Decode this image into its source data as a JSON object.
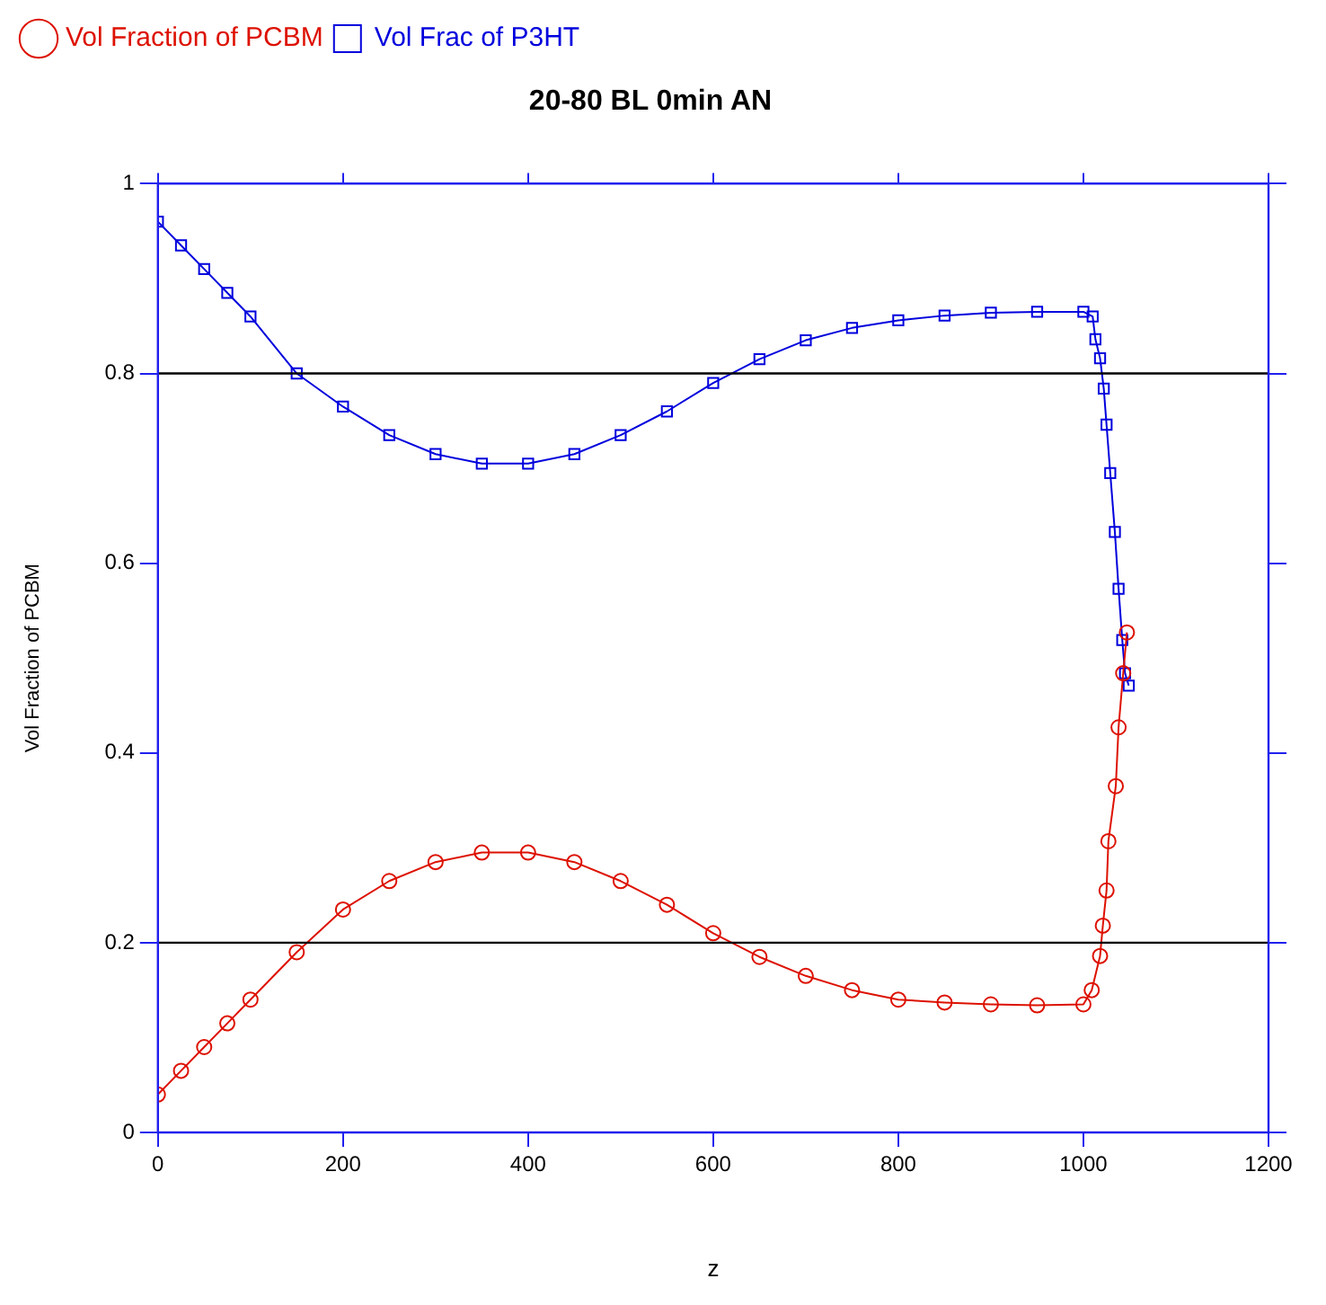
{
  "chart_data": {
    "type": "line",
    "title": "20-80 BL 0min AN",
    "xlabel": "z",
    "ylabel": "Vol Fraction of PCBM",
    "series": [
      {
        "name": "Vol Fraction of PCBM",
        "color": "#dd1100",
        "marker": "circle",
        "x": [
          0,
          25,
          50,
          75,
          100,
          150,
          200,
          250,
          300,
          350,
          400,
          450,
          500,
          550,
          600,
          650,
          700,
          750,
          800,
          850,
          900,
          950,
          1000,
          1009,
          1018,
          1021,
          1025,
          1027,
          1035,
          1038,
          1043,
          1047
        ],
        "values": [
          0.04,
          0.065,
          0.09,
          0.115,
          0.14,
          0.19,
          0.235,
          0.265,
          0.285,
          0.295,
          0.295,
          0.285,
          0.265,
          0.24,
          0.21,
          0.185,
          0.165,
          0.15,
          0.14,
          0.137,
          0.135,
          0.134,
          0.135,
          0.15,
          0.186,
          0.218,
          0.255,
          0.307,
          0.365,
          0.427,
          0.484,
          0.527
        ]
      },
      {
        "name": "Vol Frac of P3HT",
        "color": "#0000dd",
        "marker": "square",
        "x": [
          0,
          25,
          50,
          75,
          100,
          150,
          200,
          250,
          300,
          350,
          400,
          450,
          500,
          550,
          600,
          650,
          700,
          750,
          800,
          850,
          900,
          950,
          1000,
          1010,
          1013,
          1018,
          1022,
          1025,
          1029,
          1034,
          1038,
          1042,
          1045,
          1049
        ],
        "values": [
          0.96,
          0.935,
          0.91,
          0.885,
          0.86,
          0.8,
          0.765,
          0.735,
          0.715,
          0.705,
          0.705,
          0.715,
          0.735,
          0.76,
          0.79,
          0.815,
          0.835,
          0.848,
          0.856,
          0.861,
          0.864,
          0.865,
          0.865,
          0.86,
          0.836,
          0.816,
          0.784,
          0.746,
          0.695,
          0.633,
          0.573,
          0.519,
          0.484,
          0.471
        ]
      }
    ],
    "xlim": [
      0,
      1200
    ],
    "xticks": [
      0,
      200,
      400,
      600,
      800,
      1000,
      1200
    ],
    "ylim": [
      0,
      1
    ],
    "yticks": [
      0,
      0.2,
      0.4,
      0.6,
      0.8,
      1
    ],
    "ref_lines": [
      {
        "axis": "y",
        "value": 0.8,
        "color": "#000000"
      },
      {
        "axis": "y",
        "value": 0.2,
        "color": "#000000"
      }
    ],
    "grid": false,
    "legend": "top left",
    "line_style": "solid"
  }
}
